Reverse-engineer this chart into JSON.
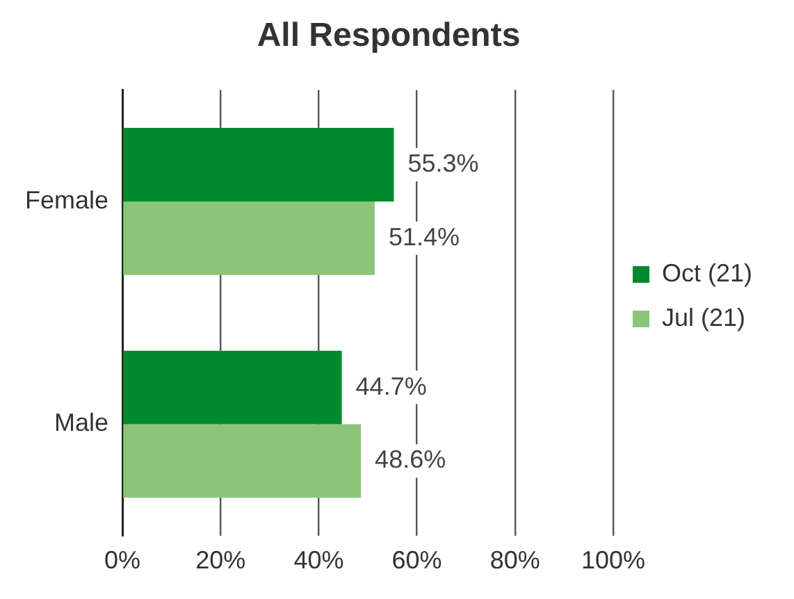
{
  "chart_data": {
    "type": "bar",
    "orientation": "horizontal",
    "title": "All Respondents",
    "categories": [
      "Female",
      "Male"
    ],
    "series": [
      {
        "name": "Oct (21)",
        "color": "#008a2e",
        "values": [
          55.3,
          44.7
        ],
        "value_labels": [
          "55.3%",
          "44.7%"
        ]
      },
      {
        "name": "Jul (21)",
        "color": "#8cc47a",
        "values": [
          51.4,
          48.6
        ],
        "value_labels": [
          "51.4%",
          "48.6%"
        ]
      }
    ],
    "xlim": [
      0,
      100
    ],
    "xticks": [
      {
        "value": 0,
        "label": "0%"
      },
      {
        "value": 20,
        "label": "20%"
      },
      {
        "value": 40,
        "label": "40%"
      },
      {
        "value": 60,
        "label": "60%"
      },
      {
        "value": 80,
        "label": "80%"
      },
      {
        "value": 100,
        "label": "100%"
      }
    ],
    "grid": "x",
    "legend": "right"
  }
}
